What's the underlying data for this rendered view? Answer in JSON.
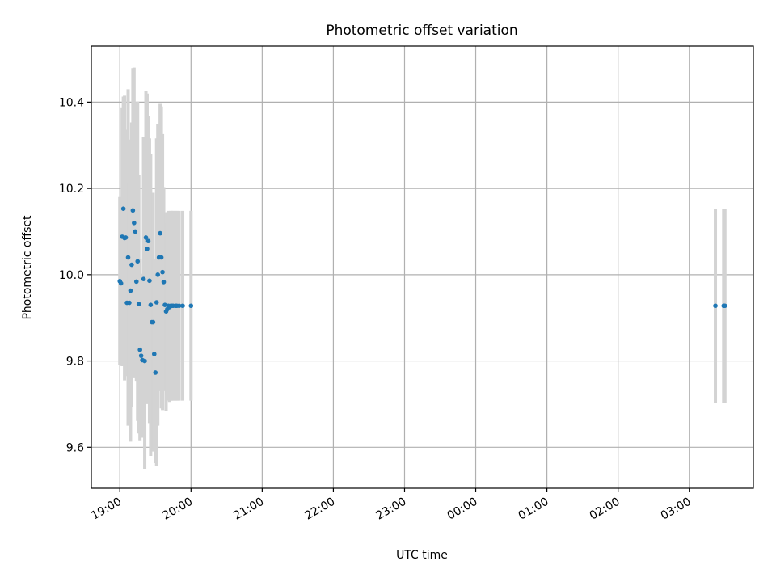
{
  "chart_data": {
    "type": "scatter",
    "title": "Photometric offset variation",
    "xlabel": "UTC time",
    "ylabel": "Photometric offset",
    "x_tick_labels": [
      "19:00",
      "20:00",
      "21:00",
      "22:00",
      "23:00",
      "00:00",
      "01:00",
      "02:00",
      "03:00"
    ],
    "y_tick_labels": [
      "9.6",
      "9.8",
      "10.0",
      "10.2",
      "10.4"
    ],
    "y_ticks": [
      9.6,
      9.8,
      10.0,
      10.2,
      10.4
    ],
    "xlim_hours_after_19_00": [
      -0.4,
      8.9
    ],
    "ylim": [
      9.505,
      10.53
    ],
    "grid": true,
    "colors": {
      "points": "#1f77b4",
      "errorbars": "#d3d3d3"
    },
    "series": [
      {
        "points": [
          {
            "x": "19:00",
            "y": 9.985,
            "err": 0.195
          },
          {
            "x": "19:01",
            "y": 9.98,
            "err": 0.19
          },
          {
            "x": "19:02",
            "y": 10.088,
            "err": 0.3
          },
          {
            "x": "19:03",
            "y": 10.153,
            "err": 0.26
          },
          {
            "x": "19:04",
            "y": 10.085,
            "err": 0.33
          },
          {
            "x": "19:05",
            "y": 10.086,
            "err": 0.25
          },
          {
            "x": "19:06",
            "y": 9.935,
            "err": 0.17
          },
          {
            "x": "19:07",
            "y": 10.04,
            "err": 0.39
          },
          {
            "x": "19:08",
            "y": 9.935,
            "err": 0.28
          },
          {
            "x": "19:09",
            "y": 9.963,
            "err": 0.35
          },
          {
            "x": "19:10",
            "y": 10.023,
            "err": 0.33
          },
          {
            "x": "19:11",
            "y": 10.149,
            "err": 0.33
          },
          {
            "x": "19:12",
            "y": 10.12,
            "err": 0.36
          },
          {
            "x": "19:13",
            "y": 10.1,
            "err": 0.3
          },
          {
            "x": "19:14",
            "y": 9.984,
            "err": 0.23
          },
          {
            "x": "19:15",
            "y": 10.031,
            "err": 0.37
          },
          {
            "x": "19:16",
            "y": 9.932,
            "err": 0.3
          },
          {
            "x": "19:17",
            "y": 9.826,
            "err": 0.21
          },
          {
            "x": "19:18",
            "y": 9.812,
            "err": 0.19
          },
          {
            "x": "19:19",
            "y": 9.802,
            "err": 0.18
          },
          {
            "x": "19:20",
            "y": 9.99,
            "err": 0.33
          },
          {
            "x": "19:21",
            "y": 9.8,
            "err": 0.25
          },
          {
            "x": "19:22",
            "y": 10.086,
            "err": 0.34
          },
          {
            "x": "19:23",
            "y": 10.06,
            "err": 0.36
          },
          {
            "x": "19:24",
            "y": 10.078,
            "err": 0.29
          },
          {
            "x": "19:25",
            "y": 9.986,
            "err": 0.33
          },
          {
            "x": "19:26",
            "y": 9.93,
            "err": 0.35
          },
          {
            "x": "19:27",
            "y": 9.89,
            "err": 0.29
          },
          {
            "x": "19:28",
            "y": 9.89,
            "err": 0.3
          },
          {
            "x": "19:29",
            "y": 9.816,
            "err": 0.22
          },
          {
            "x": "19:30",
            "y": 9.773,
            "err": 0.21
          },
          {
            "x": "19:31",
            "y": 9.936,
            "err": 0.38
          },
          {
            "x": "19:32",
            "y": 10.0,
            "err": 0.35
          },
          {
            "x": "19:33",
            "y": 10.04,
            "err": 0.31
          },
          {
            "x": "19:34",
            "y": 10.096,
            "err": 0.3
          },
          {
            "x": "19:35",
            "y": 10.04,
            "err": 0.35
          },
          {
            "x": "19:36",
            "y": 10.006,
            "err": 0.32
          },
          {
            "x": "19:37",
            "y": 9.983,
            "err": 0.22
          },
          {
            "x": "19:38",
            "y": 9.93,
            "err": 0.2
          },
          {
            "x": "19:39",
            "y": 9.915,
            "err": 0.23
          },
          {
            "x": "19:40",
            "y": 9.92,
            "err": 0.2
          },
          {
            "x": "19:41",
            "y": 9.928,
            "err": 0.22
          },
          {
            "x": "19:42",
            "y": 9.925,
            "err": 0.22
          },
          {
            "x": "19:43",
            "y": 9.928,
            "err": 0.22
          },
          {
            "x": "19:44",
            "y": 9.928,
            "err": 0.22
          },
          {
            "x": "19:45",
            "y": 9.928,
            "err": 0.22
          },
          {
            "x": "19:47",
            "y": 9.928,
            "err": 0.22
          },
          {
            "x": "19:48",
            "y": 9.928,
            "err": 0.22
          },
          {
            "x": "19:50",
            "y": 9.928,
            "err": 0.22
          },
          {
            "x": "19:53",
            "y": 9.928,
            "err": 0.22
          },
          {
            "x": "20:00",
            "y": 9.928,
            "err": 0.22
          },
          {
            "x": "03:22",
            "y": 9.928,
            "err": 0.225
          },
          {
            "x": "03:29",
            "y": 9.928,
            "err": 0.225
          },
          {
            "x": "03:30",
            "y": 9.928,
            "err": 0.225
          }
        ]
      }
    ]
  }
}
